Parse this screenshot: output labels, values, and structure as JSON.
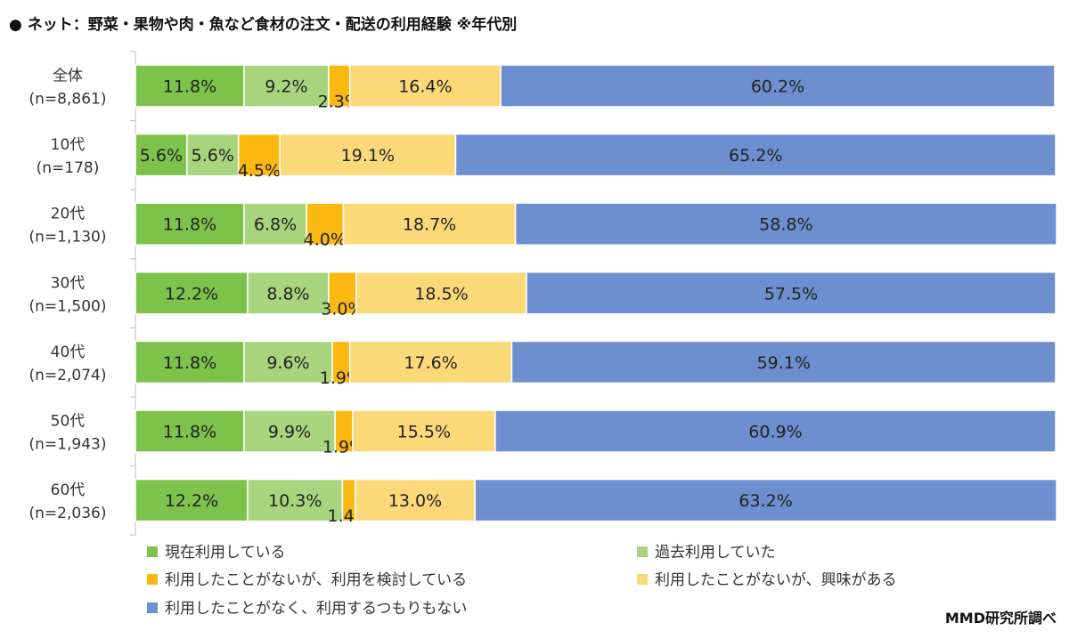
{
  "chart_data": {
    "type": "bar",
    "orientation": "horizontal",
    "stacked": true,
    "percent_stacked": true,
    "title": "●  ネット：野菜・果物や肉・魚など食材の注文・配送の利用経験  ※年代別",
    "categories": [
      [
        "全体",
        "(n=8,861)"
      ],
      [
        "10代",
        "(n=178)"
      ],
      [
        "20代",
        "(n=1,130)"
      ],
      [
        "30代",
        "(n=1,500)"
      ],
      [
        "40代",
        "(n=2,074)"
      ],
      [
        "50代",
        "(n=1,943)"
      ],
      [
        "60代",
        "(n=2,036)"
      ]
    ],
    "series": [
      {
        "name": "現在利用している",
        "color": "#7dc24b",
        "values": [
          11.8,
          5.6,
          11.8,
          12.2,
          11.8,
          11.8,
          12.2
        ],
        "labels": [
          "11.8%",
          "5.6%",
          "11.8%",
          "12.2%",
          "11.8%",
          "11.8%",
          "12.2%"
        ]
      },
      {
        "name": "過去利用していた",
        "color": "#a9d47e",
        "values": [
          9.2,
          5.6,
          6.8,
          8.8,
          9.6,
          9.9,
          10.3
        ],
        "labels": [
          "9.2%",
          "5.6%",
          "6.8%",
          "8.8%",
          "9.6%",
          "9.9%",
          "10.3%"
        ]
      },
      {
        "name": "利用したことがないが、利用を検討している",
        "color": "#fbb810",
        "values": [
          2.3,
          4.5,
          4.0,
          3.0,
          1.9,
          1.9,
          1.4
        ],
        "labels": [
          "2.3%",
          "4.5%",
          "4.0%",
          "3.0%",
          "1.9%",
          "1.9%",
          "1.4%"
        ]
      },
      {
        "name": "利用したことがないが、興味がある",
        "color": "#fcd978",
        "values": [
          16.4,
          19.1,
          18.7,
          18.5,
          17.6,
          15.5,
          13.0
        ],
        "labels": [
          "16.4%",
          "19.1%",
          "18.7%",
          "18.5%",
          "17.6%",
          "15.5%",
          "13.0%"
        ]
      },
      {
        "name": "利用したことがなく、利用するつもりもない",
        "color": "#6d8fcf",
        "values": [
          60.2,
          65.2,
          58.8,
          57.5,
          59.1,
          60.9,
          63.2
        ],
        "labels": [
          "60.2%",
          "65.2%",
          "58.8%",
          "57.5%",
          "59.1%",
          "60.9%",
          "63.2%"
        ]
      }
    ],
    "xlim": [
      0,
      100
    ],
    "grid": false,
    "legend_position": "bottom",
    "source": "MMD研究所調べ"
  }
}
